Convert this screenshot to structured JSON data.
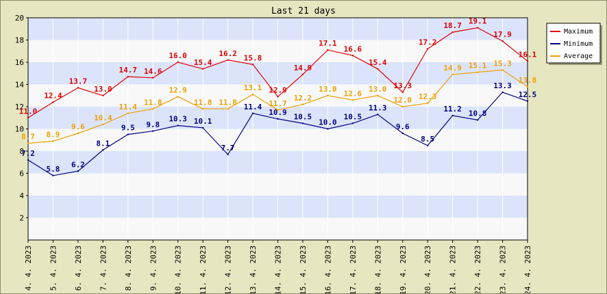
{
  "chart_data": {
    "type": "line",
    "title": "Last 21 days",
    "xlabel": "",
    "ylabel": "",
    "ylim": [
      0,
      20
    ],
    "yticks": [
      2,
      4,
      6,
      8,
      10,
      12,
      14,
      16,
      18,
      20
    ],
    "grid": true,
    "legend_position": "top-right",
    "categories": [
      "4. 4. 2023",
      "5. 4. 2023",
      "6. 4. 2023",
      "7. 4. 2023",
      "8. 4. 2023",
      "9. 4. 2023",
      "10. 4. 2023",
      "11. 4. 2023",
      "12. 4. 2023",
      "13. 4. 2023",
      "14. 4. 2023",
      "15. 4. 2023",
      "16. 4. 2023",
      "17. 4. 2023",
      "18. 4. 2023",
      "19. 4. 2023",
      "20. 4. 2023",
      "21. 4. 2023",
      "22. 4. 2023",
      "23. 4. 2023",
      "24. 4. 2023"
    ],
    "series": [
      {
        "name": "Maximum",
        "color": "#e00000",
        "values": [
          11.0,
          12.4,
          13.7,
          13.0,
          14.7,
          14.6,
          16.0,
          15.4,
          16.2,
          15.8,
          12.9,
          14.9,
          17.1,
          16.6,
          15.4,
          13.3,
          17.2,
          18.7,
          19.1,
          17.9,
          16.1
        ],
        "labels": [
          "11.0",
          "12.4",
          "13.7",
          "13.0",
          "14.7",
          "14.6",
          "16.0",
          "15.4",
          "16.2",
          "15.8",
          "12.9",
          "14.9",
          "17.1",
          "16.6",
          "15.4",
          "13.3",
          "17.2",
          "18.7",
          "19.1",
          "17.9",
          "16.1"
        ]
      },
      {
        "name": "Minimum",
        "color": "#000080",
        "values": [
          7.2,
          5.8,
          6.2,
          8.1,
          9.5,
          9.8,
          10.3,
          10.1,
          7.7,
          11.4,
          10.9,
          10.5,
          10.0,
          10.5,
          11.3,
          9.6,
          8.5,
          11.2,
          10.8,
          13.3,
          12.5
        ],
        "labels": [
          "7.2",
          "5.8",
          "6.2",
          "8.1",
          "9.5",
          "9.8",
          "10.3",
          "10.1",
          "7.7",
          "11.4",
          "10.9",
          "10.5",
          "10.0",
          "10.5",
          "11.3",
          "9.6",
          "8.5",
          "11.2",
          "10.8",
          "13.3",
          "12.5"
        ]
      },
      {
        "name": "Average",
        "color": "#f0a000",
        "values": [
          8.7,
          8.9,
          9.6,
          10.4,
          11.4,
          11.8,
          12.9,
          11.8,
          11.8,
          13.1,
          11.7,
          12.2,
          13.0,
          12.6,
          13.0,
          12.0,
          12.3,
          14.9,
          15.1,
          15.3,
          13.8
        ],
        "labels": [
          "8.7",
          "8.9",
          "9.6",
          "10.4",
          "11.4",
          "11.8",
          "12.9",
          "11.8",
          "11.8",
          "13.1",
          "11.7",
          "12.2",
          "13.0",
          "12.6",
          "13.0",
          "12.0",
          "12.3",
          "14.9",
          "15.1",
          "15.3",
          "13.8"
        ]
      }
    ]
  }
}
